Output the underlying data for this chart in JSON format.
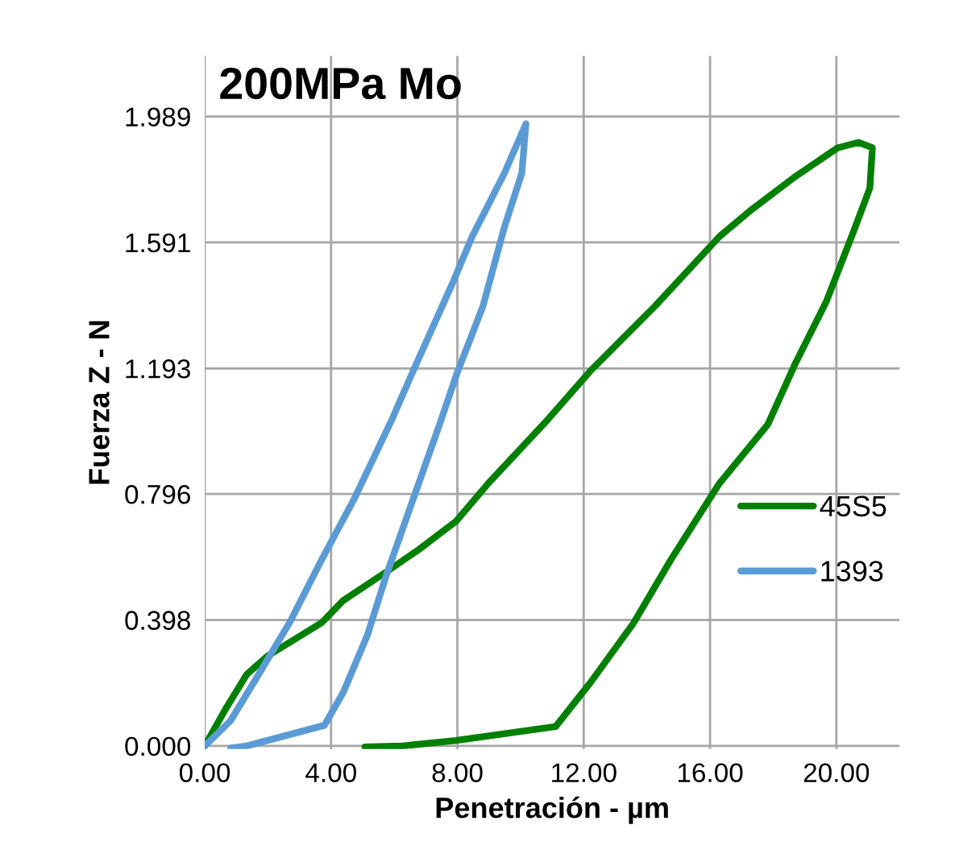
{
  "chart_data": {
    "type": "line",
    "title": "200MPa Mo",
    "xlabel": "Penetración - µm",
    "ylabel": "Fuerza Z - N",
    "xlim": [
      0,
      22
    ],
    "ylim": [
      -0.01,
      2.18
    ],
    "xticks": [
      {
        "value": 0,
        "label": "0.00"
      },
      {
        "value": 4,
        "label": "4.00"
      },
      {
        "value": 8,
        "label": "8.00"
      },
      {
        "value": 12,
        "label": "12.00"
      },
      {
        "value": 16,
        "label": "16.00"
      },
      {
        "value": 20,
        "label": "20.00"
      }
    ],
    "yticks": [
      {
        "value": 0,
        "label": "0.000"
      },
      {
        "value": 0.398,
        "label": "0.398"
      },
      {
        "value": 0.796,
        "label": "0.796"
      },
      {
        "value": 1.193,
        "label": "1.193"
      },
      {
        "value": 1.591,
        "label": "1.591"
      },
      {
        "value": 1.989,
        "label": "1.989"
      }
    ],
    "grid": true,
    "legend": "right",
    "marker": "none",
    "line_style": "solid",
    "series": [
      {
        "name": "45S5",
        "color": "#008000",
        "x": [
          0,
          0.65,
          1.33,
          2.0,
          3.71,
          4.39,
          5.75,
          6.77,
          7.96,
          8.98,
          10.85,
          12.21,
          14.26,
          16.3,
          17.32,
          18.67,
          20.04,
          20.71,
          21.14,
          21.06,
          20.55,
          19.69,
          18.67,
          17.83,
          16.3,
          14.77,
          13.57,
          12.21,
          11.11,
          7.96,
          6.26,
          5.07
        ],
        "values": [
          0,
          0.115,
          0.226,
          0.285,
          0.39,
          0.46,
          0.55,
          0.62,
          0.71,
          0.83,
          1.03,
          1.185,
          1.39,
          1.61,
          1.695,
          1.797,
          1.89,
          1.907,
          1.89,
          1.763,
          1.627,
          1.406,
          1.202,
          1.016,
          0.83,
          0.59,
          0.387,
          0.2,
          0.061,
          0.017,
          0,
          -0.003
        ]
      },
      {
        "name": "1393",
        "color": "#5b9bd5",
        "x": [
          0,
          0.82,
          1.67,
          2.69,
          3.71,
          4.73,
          5.92,
          6.6,
          7.88,
          8.47,
          9.49,
          10.17,
          10.04,
          9.49,
          8.81,
          7.96,
          7.45,
          6.6,
          5.75,
          5.15,
          4.39,
          3.79,
          1.33,
          0.82
        ],
        "values": [
          0,
          0.08,
          0.22,
          0.39,
          0.59,
          0.78,
          1.03,
          1.185,
          1.47,
          1.61,
          1.81,
          1.966,
          1.81,
          1.64,
          1.39,
          1.17,
          1.02,
          0.78,
          0.54,
          0.35,
          0.17,
          0.065,
          0,
          -0.007
        ]
      }
    ]
  }
}
